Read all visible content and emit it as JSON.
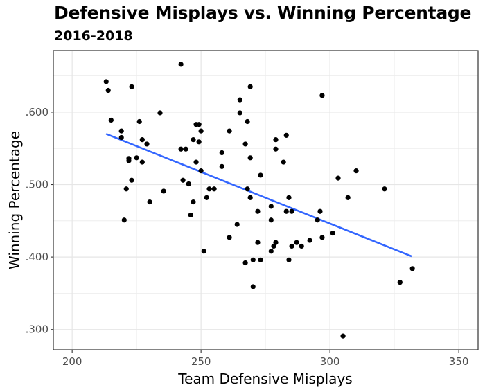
{
  "chart_data": {
    "type": "scatter",
    "title": "Defensive Misplays vs. Winning Percentage",
    "subtitle": "2016-2018",
    "xlabel": "Team Defensive Misplays",
    "ylabel": "Winning Percentage",
    "xlim": [
      192.7,
      357.5
    ],
    "ylim": [
      0.272,
      0.685
    ],
    "x_ticks": [
      200,
      250,
      300,
      350
    ],
    "x_tick_labels": [
      "200",
      "250",
      "300",
      "350"
    ],
    "x_minor_ticks": [
      225,
      275,
      325
    ],
    "y_ticks": [
      0.3,
      0.4,
      0.5,
      0.6
    ],
    "y_tick_labels": [
      ".300",
      ".400",
      ".500",
      ".600"
    ],
    "y_minor_ticks": [
      0.35,
      0.45,
      0.55,
      0.65
    ],
    "grid": true,
    "legend": "none",
    "point_color": "#000000",
    "trend_color": "#3366ff",
    "trendline": {
      "x": [
        213.2,
        331.7
      ],
      "y": [
        0.57,
        0.401
      ],
      "method": "linear"
    },
    "points": [
      [
        213.2,
        0.642
      ],
      [
        214.0,
        0.63
      ],
      [
        215.1,
        0.589
      ],
      [
        219.1,
        0.574
      ],
      [
        219.1,
        0.565
      ],
      [
        223.1,
        0.635
      ],
      [
        226.1,
        0.587
      ],
      [
        227.2,
        0.562
      ],
      [
        229.0,
        0.556
      ],
      [
        222.0,
        0.536
      ],
      [
        222.0,
        0.533
      ],
      [
        225.0,
        0.537
      ],
      [
        227.2,
        0.531
      ],
      [
        223.1,
        0.506
      ],
      [
        221.0,
        0.494
      ],
      [
        230.1,
        0.476
      ],
      [
        220.2,
        0.451
      ],
      [
        234.1,
        0.599
      ],
      [
        235.5,
        0.491
      ],
      [
        242.2,
        0.666
      ],
      [
        242.2,
        0.549
      ],
      [
        244.1,
        0.549
      ],
      [
        243.0,
        0.506
      ],
      [
        245.2,
        0.501
      ],
      [
        247.0,
        0.476
      ],
      [
        246.0,
        0.458
      ],
      [
        248.1,
        0.583
      ],
      [
        249.2,
        0.583
      ],
      [
        250.0,
        0.574
      ],
      [
        247.0,
        0.562
      ],
      [
        249.2,
        0.559
      ],
      [
        248.1,
        0.531
      ],
      [
        250.0,
        0.519
      ],
      [
        253.2,
        0.494
      ],
      [
        255.1,
        0.494
      ],
      [
        252.2,
        0.482
      ],
      [
        251.1,
        0.408
      ],
      [
        258.1,
        0.544
      ],
      [
        258.1,
        0.525
      ],
      [
        261.0,
        0.574
      ],
      [
        261.0,
        0.427
      ],
      [
        264.0,
        0.445
      ],
      [
        265.1,
        0.617
      ],
      [
        265.1,
        0.599
      ],
      [
        267.2,
        0.556
      ],
      [
        268.0,
        0.587
      ],
      [
        269.1,
        0.635
      ],
      [
        269.1,
        0.537
      ],
      [
        268.0,
        0.494
      ],
      [
        269.1,
        0.482
      ],
      [
        267.2,
        0.392
      ],
      [
        270.2,
        0.396
      ],
      [
        270.2,
        0.359
      ],
      [
        272.0,
        0.463
      ],
      [
        272.0,
        0.42
      ],
      [
        273.1,
        0.513
      ],
      [
        273.1,
        0.396
      ],
      [
        277.2,
        0.47
      ],
      [
        277.2,
        0.451
      ],
      [
        277.2,
        0.408
      ],
      [
        278.2,
        0.415
      ],
      [
        279.0,
        0.42
      ],
      [
        279.0,
        0.562
      ],
      [
        283.1,
        0.568
      ],
      [
        279.0,
        0.549
      ],
      [
        282.0,
        0.531
      ],
      [
        284.1,
        0.482
      ],
      [
        283.1,
        0.463
      ],
      [
        285.2,
        0.463
      ],
      [
        284.1,
        0.396
      ],
      [
        285.2,
        0.415
      ],
      [
        287.1,
        0.42
      ],
      [
        289.0,
        0.415
      ],
      [
        292.2,
        0.423
      ],
      [
        295.2,
        0.451
      ],
      [
        296.2,
        0.463
      ],
      [
        297.0,
        0.427
      ],
      [
        301.1,
        0.433
      ],
      [
        297.0,
        0.623
      ],
      [
        303.2,
        0.509
      ],
      [
        310.2,
        0.519
      ],
      [
        307.0,
        0.482
      ],
      [
        321.2,
        0.494
      ],
      [
        305.1,
        0.291
      ],
      [
        327.2,
        0.365
      ],
      [
        332.0,
        0.384
      ]
    ]
  }
}
